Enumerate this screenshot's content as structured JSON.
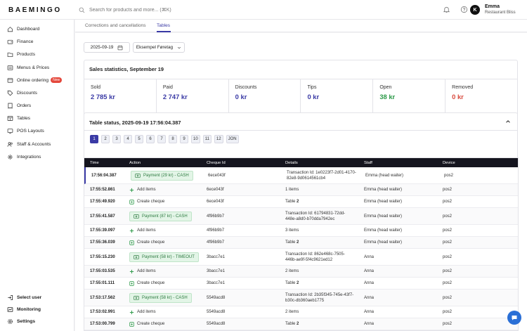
{
  "brand": {
    "logo": "BAEMINGO"
  },
  "search": {
    "placeholder": "Search for products and more... (⌘K)"
  },
  "user": {
    "initial": "K",
    "name": "Emma",
    "subtitle": "Restaurant Bliss"
  },
  "sidebar": {
    "items": [
      {
        "label": "Dashboard",
        "icon": "home-icon"
      },
      {
        "label": "Finance",
        "icon": "wallet-icon"
      },
      {
        "label": "Products",
        "icon": "folder-icon"
      },
      {
        "label": "Menus & Prices",
        "icon": "menu-icon"
      },
      {
        "label": "Online ordering",
        "icon": "globe-icon",
        "badge": "New"
      },
      {
        "label": "Discounts",
        "icon": "tag-icon"
      },
      {
        "label": "Orders",
        "icon": "receipt-icon"
      },
      {
        "label": "Tables",
        "icon": "table-icon"
      },
      {
        "label": "POS Layouts",
        "icon": "grid-icon"
      },
      {
        "label": "Staff & Accounts",
        "icon": "users-icon"
      },
      {
        "label": "Integrations",
        "icon": "puzzle-icon"
      }
    ],
    "bottom": [
      {
        "label": "Select user",
        "icon": "login-icon"
      },
      {
        "label": "Monitoring",
        "icon": "monitor-icon"
      },
      {
        "label": "Settings",
        "icon": "gear-icon"
      }
    ]
  },
  "subtabs": [
    {
      "label": "Corrections and cancellations",
      "active": false
    },
    {
      "label": "Tables",
      "active": true
    }
  ],
  "filters": {
    "date": "2025-09-19",
    "location": "Eksempel Føretag"
  },
  "sales": {
    "title": "Sales statistics, September 19",
    "stats": [
      {
        "label": "Sold",
        "value": "2 785 kr",
        "color": "#3a3aa5"
      },
      {
        "label": "Paid",
        "value": "2 747 kr",
        "color": "#3a3aa5"
      },
      {
        "label": "Discounts",
        "value": "0 kr",
        "color": "#3a3aa5"
      },
      {
        "label": "Tips",
        "value": "0 kr",
        "color": "#3a3aa5"
      },
      {
        "label": "Open",
        "value": "38 kr",
        "color": "#2e9a4a"
      },
      {
        "label": "Removed",
        "value": "0 kr",
        "color": "#d94b3f"
      }
    ]
  },
  "table_status": {
    "title": "Table status, 2025-09-19 17:56:04.387",
    "pages": [
      "1",
      "2",
      "3",
      "4",
      "5",
      "6",
      "7",
      "8",
      "9",
      "10",
      "11",
      "12",
      "JON"
    ],
    "active_page": "1"
  },
  "log": {
    "headers": {
      "time": "Time",
      "action": "Action",
      "cheque": "Cheque Id",
      "details": "Details",
      "staff": "Staff",
      "device": "Device"
    },
    "rows": [
      {
        "time": "17:56:04.387",
        "type": "payment",
        "action": "Payment (29 kr) - CASH",
        "cheque": "6ece043f",
        "details": "Transaction Id: 1e0223f7-2d01-4170-82e8-9d0614561cb4",
        "staff": "Emma (head waiter)",
        "device": "pos2"
      },
      {
        "time": "17:55:52.861",
        "type": "add",
        "action": "Add items",
        "cheque": "6ece043f",
        "details": "1 items",
        "staff": "Emma (head waiter)",
        "device": "pos2"
      },
      {
        "time": "17:55:49.920",
        "type": "create",
        "action": "Create cheque",
        "cheque": "6ece043f",
        "details_prefix": "Table",
        "details_bold": "2",
        "staff": "Emma (head waiter)",
        "device": "pos2"
      },
      {
        "time": "17:55:41.587",
        "type": "payment",
        "action": "Payment (87 kr) - CASH",
        "cheque": "4f96b9b7",
        "details": "Transaction Id: 61794831-72dd-448e-a8d0-b70dda7942ec",
        "staff": "Emma (head waiter)",
        "device": "pos2"
      },
      {
        "time": "17:55:39.097",
        "type": "add",
        "action": "Add items",
        "cheque": "4f96b9b7",
        "details": "3 items",
        "staff": "Emma (head waiter)",
        "device": "pos2"
      },
      {
        "time": "17:55:36.039",
        "type": "create",
        "action": "Create cheque",
        "cheque": "4f96b9b7",
        "details_prefix": "Table",
        "details_bold": "2",
        "staff": "Emma (head waiter)",
        "device": "pos2"
      },
      {
        "time": "17:55:15.230",
        "type": "payment",
        "action": "Payment (58 kr) - TIMEOUT",
        "cheque": "3bacc7e1",
        "details": "Transaction Id: 862e468c-7505-446b-ae9f-5f4c9621ed12",
        "staff": "Anna",
        "device": "pos2"
      },
      {
        "time": "17:55:03.535",
        "type": "add",
        "action": "Add items",
        "cheque": "3bacc7e1",
        "details": "2 items",
        "staff": "Anna",
        "device": "pos2"
      },
      {
        "time": "17:55:01.111",
        "type": "create",
        "action": "Create cheque",
        "cheque": "3bacc7e1",
        "details_prefix": "Table",
        "details_bold": "2",
        "staff": "Anna",
        "device": "pos2"
      },
      {
        "time": "17:53:17.562",
        "type": "payment",
        "action": "Payment (58 kr) - CASH",
        "cheque": "5549acd8",
        "details": "Transaction Id: 2b35f345-745e-43f7-b30c-db360aeb1775",
        "staff": "Anna",
        "device": "pos2"
      },
      {
        "time": "17:53:02.991",
        "type": "add",
        "action": "Add items",
        "cheque": "5549acd8",
        "details": "2 items",
        "staff": "Anna",
        "device": "pos2"
      },
      {
        "time": "17:53:00.799",
        "type": "create",
        "action": "Create cheque",
        "cheque": "5549acd8",
        "details_prefix": "Table",
        "details_bold": "2",
        "staff": "Anna",
        "device": "pos2"
      }
    ]
  }
}
